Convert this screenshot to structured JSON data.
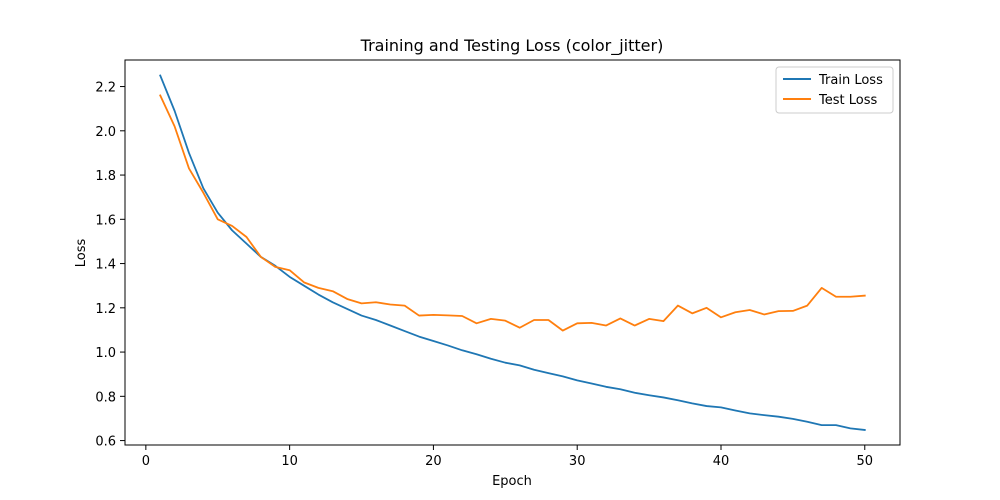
{
  "chart_data": {
    "type": "line",
    "title": "Training and Testing Loss (color_jitter)",
    "xlabel": "Epoch",
    "ylabel": "Loss",
    "xlim": [
      -1.45,
      52.45
    ],
    "ylim": [
      0.58,
      2.32
    ],
    "xticks": [
      0,
      10,
      20,
      30,
      40,
      50
    ],
    "xtick_labels": [
      "0",
      "10",
      "20",
      "30",
      "40",
      "50"
    ],
    "yticks": [
      0.6,
      0.8,
      1.0,
      1.2,
      1.4,
      1.6,
      1.8,
      2.0,
      2.2
    ],
    "ytick_labels": [
      "0.6",
      "0.8",
      "1.0",
      "1.2",
      "1.4",
      "1.6",
      "1.8",
      "2.0",
      "2.2"
    ],
    "grid": false,
    "legend": "top-right",
    "x": [
      1,
      2,
      3,
      4,
      5,
      6,
      7,
      8,
      9,
      10,
      11,
      12,
      13,
      14,
      15,
      16,
      17,
      18,
      19,
      20,
      21,
      22,
      23,
      24,
      25,
      26,
      27,
      28,
      29,
      30,
      31,
      32,
      33,
      34,
      35,
      36,
      37,
      38,
      39,
      40,
      41,
      42,
      43,
      44,
      45,
      46,
      47,
      48,
      49,
      50
    ],
    "series": [
      {
        "name": "Train Loss",
        "color": "#1f77b4",
        "values": [
          2.25,
          2.09,
          1.9,
          1.74,
          1.63,
          1.55,
          1.49,
          1.43,
          1.39,
          1.34,
          1.3,
          1.26,
          1.225,
          1.195,
          1.165,
          1.145,
          1.12,
          1.095,
          1.07,
          1.05,
          1.03,
          1.008,
          0.99,
          0.97,
          0.952,
          0.94,
          0.92,
          0.905,
          0.89,
          0.872,
          0.858,
          0.843,
          0.832,
          0.816,
          0.805,
          0.795,
          0.782,
          0.768,
          0.756,
          0.75,
          0.736,
          0.723,
          0.715,
          0.708,
          0.698,
          0.685,
          0.67,
          0.67,
          0.655,
          0.648
        ]
      },
      {
        "name": "Test Loss",
        "color": "#ff7f0e",
        "values": [
          2.16,
          2.02,
          1.83,
          1.72,
          1.6,
          1.57,
          1.52,
          1.43,
          1.385,
          1.37,
          1.315,
          1.29,
          1.275,
          1.24,
          1.22,
          1.225,
          1.215,
          1.21,
          1.165,
          1.168,
          1.166,
          1.163,
          1.13,
          1.15,
          1.142,
          1.11,
          1.145,
          1.145,
          1.097,
          1.13,
          1.132,
          1.12,
          1.152,
          1.12,
          1.15,
          1.14,
          1.21,
          1.175,
          1.2,
          1.157,
          1.18,
          1.19,
          1.17,
          1.185,
          1.186,
          1.21,
          1.29,
          1.25,
          1.25,
          1.255
        ]
      }
    ]
  }
}
